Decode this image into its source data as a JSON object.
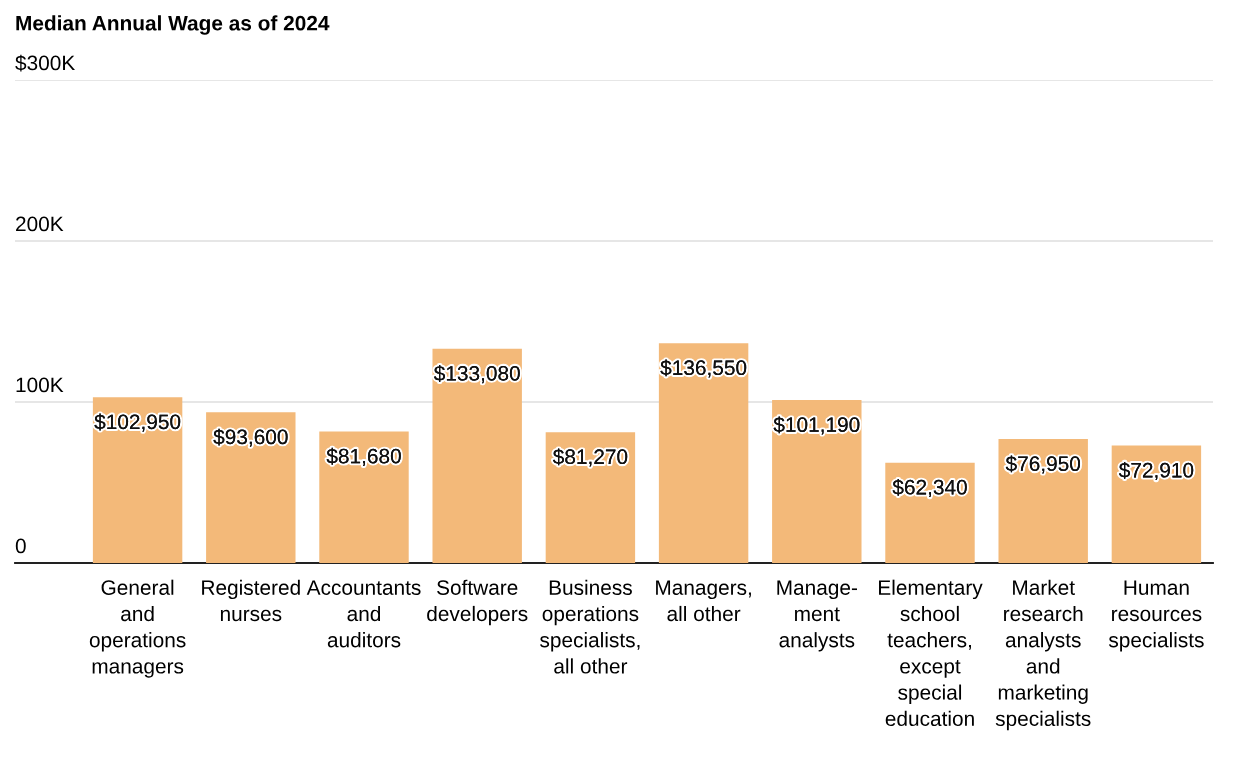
{
  "chart_data": {
    "type": "bar",
    "title": "Median Annual Wage as of 2024",
    "categories": [
      "General\nand\noperations\nmanagers",
      "Registered\nnurses",
      "Accountants\nand\nauditors",
      "Software\ndevelopers",
      "Business\noperations\nspecialists,\nall other",
      "Managers,\nall other",
      "Manage-\nment\nanalysts",
      "Elementary\nschool\nteachers,\nexcept\nspecial\neducation",
      "Market\nresearch\nanalysts\nand\nmarketing\nspecialists",
      "Human\nresources\nspecialists"
    ],
    "values": [
      102950,
      93600,
      81680,
      133080,
      81270,
      136550,
      101190,
      62340,
      76950,
      72910
    ],
    "value_labels": [
      "$102,950",
      "$93,600",
      "$81,680",
      "$133,080",
      "$81,270",
      "$136,550",
      "$101,190",
      "$62,340",
      "$76,950",
      "$72,910"
    ],
    "color": "#f3b979",
    "ylim": [
      0,
      300000
    ],
    "yticks": [
      {
        "value": 0,
        "label": "0"
      },
      {
        "value": 100000,
        "label": "100K"
      },
      {
        "value": 200000,
        "label": "200K"
      },
      {
        "value": 300000,
        "label": "$300K"
      }
    ],
    "grid": "y"
  }
}
